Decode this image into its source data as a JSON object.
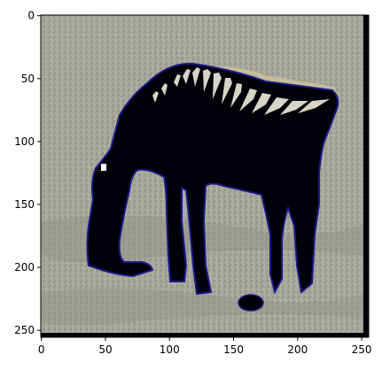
{
  "figure": {
    "kind": "image-display",
    "subject": "zebra grazing on grey ground (posterized)",
    "x_axis": {
      "range": [
        0,
        255
      ],
      "ticks": [
        "0",
        "50",
        "100",
        "150",
        "200",
        "250"
      ],
      "tick_values": [
        0,
        50,
        100,
        150,
        200,
        250
      ]
    },
    "y_axis": {
      "range": [
        0,
        255
      ],
      "inverted": true,
      "ticks": [
        "0",
        "50",
        "100",
        "150",
        "200",
        "250"
      ],
      "tick_values": [
        0,
        50,
        100,
        150,
        200,
        250
      ]
    }
  },
  "colors": {
    "ground": "#a6a69a",
    "ground_dark": "#8e8e84",
    "silhouette": "#000008",
    "edge_blue": "#1a1a8a",
    "stripe_light": "#d8d4c6",
    "mane_tan": "#c9bf9a",
    "axis": "#000000",
    "figure_bg": "#ffffff"
  }
}
